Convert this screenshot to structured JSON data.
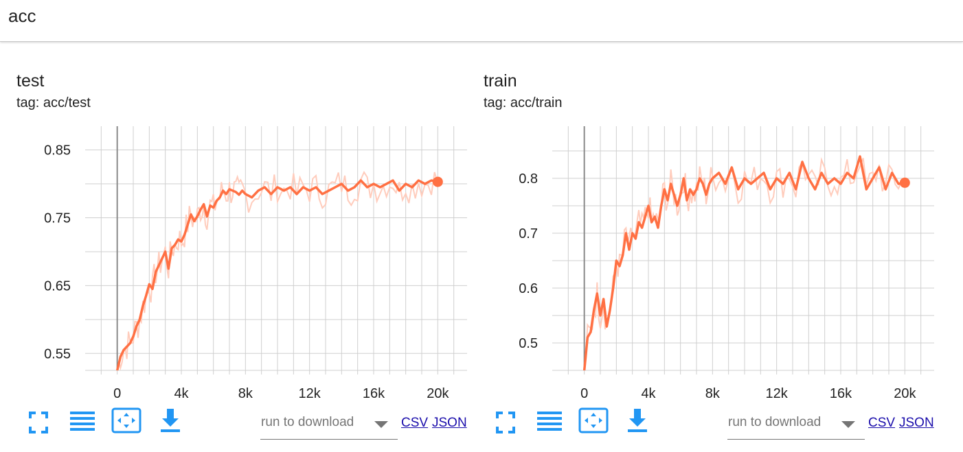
{
  "header": {
    "title": "acc"
  },
  "colors": {
    "smoothed": "#ff7043",
    "raw": "#ffccbc",
    "icons": "#2196f3",
    "grid": "#cfcfcf",
    "axis": "#757575"
  },
  "toolbar": {
    "fullscreen_icon": "fullscreen-icon",
    "lines_icon": "lines-icon",
    "fit_domain_icon": "fit-domain-icon",
    "download_icon": "download-icon",
    "download_label": "run to download",
    "csv_label": "CSV",
    "json_label": "JSON"
  },
  "chart_data": [
    {
      "type": "line",
      "title": "test",
      "tag": "tag: acc/test",
      "xlim": [
        -2000,
        22000
      ],
      "ylim": [
        0.525,
        0.885
      ],
      "xticks": [
        0,
        4000,
        8000,
        12000,
        16000,
        20000
      ],
      "xtick_labels": [
        "0",
        "4k",
        "8k",
        "12k",
        "16k",
        "20k"
      ],
      "yticks": [
        0.55,
        0.65,
        0.75,
        0.85
      ],
      "ytick_labels": [
        "0.55",
        "0.65",
        "0.75",
        "0.85"
      ],
      "grid": true,
      "series": [
        {
          "x": [
            0,
            200,
            400,
            600,
            800,
            1000,
            1200,
            1400,
            1600,
            1800,
            2000,
            2200,
            2400,
            2600,
            2800,
            3000,
            3200,
            3400,
            3600,
            3800,
            4000,
            4200,
            4400,
            4600,
            4800,
            5000,
            5200,
            5400,
            5600,
            5800,
            6000,
            6200,
            6400,
            6600,
            6800,
            7000,
            7200,
            7400,
            7600,
            7800,
            8000,
            8400,
            8800,
            9200,
            9600,
            10000,
            10400,
            10800,
            11200,
            11600,
            12000,
            12400,
            12800,
            13200,
            13600,
            14000,
            14400,
            14800,
            15200,
            15600,
            16000,
            16400,
            16800,
            17200,
            17600,
            18000,
            18400,
            18800,
            19200,
            19600,
            20000
          ],
          "y": [
            0.525,
            0.545,
            0.555,
            0.56,
            0.565,
            0.575,
            0.59,
            0.6,
            0.62,
            0.635,
            0.652,
            0.645,
            0.67,
            0.68,
            0.69,
            0.7,
            0.675,
            0.705,
            0.71,
            0.718,
            0.715,
            0.725,
            0.74,
            0.755,
            0.745,
            0.752,
            0.762,
            0.77,
            0.752,
            0.768,
            0.765,
            0.775,
            0.78,
            0.79,
            0.785,
            0.792,
            0.79,
            0.788,
            0.784,
            0.79,
            0.785,
            0.78,
            0.79,
            0.795,
            0.785,
            0.795,
            0.79,
            0.795,
            0.785,
            0.795,
            0.79,
            0.795,
            0.785,
            0.79,
            0.795,
            0.8,
            0.79,
            0.795,
            0.805,
            0.795,
            0.8,
            0.795,
            0.8,
            0.805,
            0.79,
            0.8,
            0.795,
            0.805,
            0.8,
            0.805,
            0.803
          ]
        }
      ]
    },
    {
      "type": "line",
      "title": "train",
      "tag": "tag: acc/train",
      "xlim": [
        -2000,
        22000
      ],
      "ylim": [
        0.45,
        0.895
      ],
      "xticks": [
        0,
        4000,
        8000,
        12000,
        16000,
        20000
      ],
      "xtick_labels": [
        "0",
        "4k",
        "8k",
        "12k",
        "16k",
        "20k"
      ],
      "yticks": [
        0.5,
        0.6,
        0.7,
        0.8
      ],
      "ytick_labels": [
        "0.5",
        "0.6",
        "0.7",
        "0.8"
      ],
      "grid": true,
      "series": [
        {
          "x": [
            0,
            200,
            400,
            600,
            800,
            1000,
            1200,
            1400,
            1600,
            1800,
            2000,
            2200,
            2400,
            2600,
            2800,
            3000,
            3200,
            3400,
            3600,
            3800,
            4000,
            4200,
            4400,
            4600,
            4800,
            5000,
            5200,
            5400,
            5600,
            5800,
            6000,
            6200,
            6400,
            6600,
            6800,
            7000,
            7200,
            7400,
            7600,
            7800,
            8000,
            8400,
            8800,
            9200,
            9600,
            10000,
            10400,
            10800,
            11200,
            11600,
            12000,
            12400,
            12800,
            13200,
            13600,
            14000,
            14400,
            14800,
            15200,
            15600,
            16000,
            16400,
            16800,
            17200,
            17600,
            18000,
            18400,
            18800,
            19200,
            19600,
            20000
          ],
          "y": [
            0.45,
            0.51,
            0.52,
            0.56,
            0.59,
            0.55,
            0.58,
            0.53,
            0.56,
            0.6,
            0.65,
            0.64,
            0.66,
            0.7,
            0.67,
            0.7,
            0.69,
            0.72,
            0.71,
            0.73,
            0.75,
            0.72,
            0.73,
            0.71,
            0.75,
            0.78,
            0.76,
            0.79,
            0.77,
            0.75,
            0.77,
            0.8,
            0.76,
            0.78,
            0.77,
            0.78,
            0.8,
            0.79,
            0.77,
            0.79,
            0.8,
            0.81,
            0.79,
            0.82,
            0.78,
            0.8,
            0.79,
            0.8,
            0.81,
            0.78,
            0.8,
            0.79,
            0.81,
            0.78,
            0.83,
            0.8,
            0.78,
            0.81,
            0.79,
            0.8,
            0.79,
            0.81,
            0.8,
            0.84,
            0.78,
            0.8,
            0.82,
            0.78,
            0.81,
            0.79,
            0.792
          ]
        }
      ]
    }
  ]
}
